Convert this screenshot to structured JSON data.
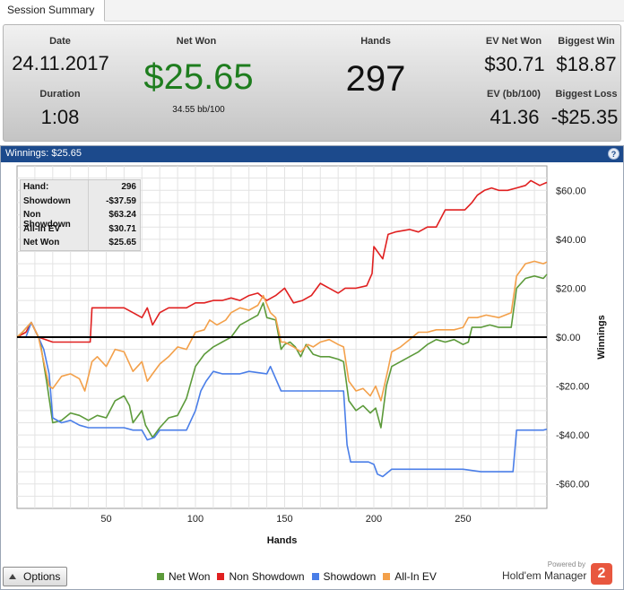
{
  "tab": {
    "label": "Session Summary"
  },
  "summary": {
    "date": {
      "label": "Date",
      "value": "24.11.2017"
    },
    "duration": {
      "label": "Duration",
      "value": "1:08"
    },
    "net_won": {
      "label": "Net Won",
      "value": "$25.65",
      "sub": "34.55 bb/100",
      "color": "#1e7d1e"
    },
    "hands": {
      "label": "Hands",
      "value": "297"
    },
    "ev_net_won": {
      "label": "EV Net Won",
      "value": "$30.71"
    },
    "biggest_win": {
      "label": "Biggest Win",
      "value": "$18.87"
    },
    "ev_bb100": {
      "label": "EV (bb/100)",
      "value": "41.36"
    },
    "biggest_loss": {
      "label": "Biggest Loss",
      "value": "-$25.35"
    }
  },
  "chart_header": {
    "title": "Winnings:  $25.65",
    "help": "?"
  },
  "info_table": [
    {
      "key": "Hand:",
      "value": "296"
    },
    {
      "key": "Showdown",
      "value": "-$37.59"
    },
    {
      "key": "Non Showdown",
      "value": "$63.24"
    },
    {
      "key": "All-In EV",
      "value": "$30.71"
    },
    {
      "key": "Net Won",
      "value": "$25.65"
    }
  ],
  "options": {
    "label": "Options"
  },
  "brand": {
    "powered": "Powered by",
    "name": "Hold'em Manager",
    "logo": "2"
  },
  "chart_data": {
    "type": "line",
    "xlabel": "Hands",
    "ylabel": "Winnings",
    "xlim": [
      0,
      297
    ],
    "ylim": [
      -70,
      70
    ],
    "xticks": [
      "50",
      "100",
      "150",
      "200",
      "250"
    ],
    "yticks": [
      "$60.00",
      "$40.00",
      "$20.00",
      "$0.00",
      "-$20.00",
      "-$40.00",
      "-$60.00"
    ],
    "grid": true,
    "legend_position": "bottom",
    "series": [
      {
        "name": "Net Won",
        "color": "#5c9a3a",
        "points": [
          [
            0,
            0
          ],
          [
            3,
            2
          ],
          [
            8,
            6
          ],
          [
            12,
            0
          ],
          [
            13,
            -2
          ],
          [
            17,
            -20
          ],
          [
            20,
            -35
          ],
          [
            25,
            -34
          ],
          [
            30,
            -31
          ],
          [
            35,
            -32
          ],
          [
            40,
            -34
          ],
          [
            45,
            -32
          ],
          [
            50,
            -33
          ],
          [
            55,
            -26
          ],
          [
            60,
            -24
          ],
          [
            63,
            -28
          ],
          [
            65,
            -35
          ],
          [
            70,
            -30
          ],
          [
            72,
            -36
          ],
          [
            76,
            -41
          ],
          [
            80,
            -37
          ],
          [
            85,
            -33
          ],
          [
            90,
            -32
          ],
          [
            95,
            -25
          ],
          [
            100,
            -12
          ],
          [
            105,
            -7
          ],
          [
            110,
            -4
          ],
          [
            115,
            -2
          ],
          [
            120,
            0
          ],
          [
            125,
            5
          ],
          [
            130,
            7
          ],
          [
            135,
            9
          ],
          [
            138,
            14
          ],
          [
            140,
            8
          ],
          [
            145,
            7
          ],
          [
            148,
            -5
          ],
          [
            150,
            -3
          ],
          [
            153,
            -2
          ],
          [
            156,
            -4
          ],
          [
            159,
            -8
          ],
          [
            162,
            -3
          ],
          [
            166,
            -7
          ],
          [
            170,
            -8
          ],
          [
            175,
            -8
          ],
          [
            180,
            -9
          ],
          [
            183,
            -10
          ],
          [
            186,
            -26
          ],
          [
            190,
            -30
          ],
          [
            194,
            -28
          ],
          [
            198,
            -31
          ],
          [
            201,
            -29
          ],
          [
            204,
            -37
          ],
          [
            207,
            -20
          ],
          [
            210,
            -12
          ],
          [
            215,
            -10
          ],
          [
            220,
            -8
          ],
          [
            225,
            -6
          ],
          [
            230,
            -3
          ],
          [
            235,
            -1
          ],
          [
            240,
            -2
          ],
          [
            245,
            -1
          ],
          [
            250,
            -3
          ],
          [
            253,
            -2
          ],
          [
            255,
            4
          ],
          [
            260,
            4
          ],
          [
            265,
            5
          ],
          [
            270,
            4
          ],
          [
            277,
            4
          ],
          [
            280,
            20
          ],
          [
            285,
            24
          ],
          [
            290,
            25
          ],
          [
            295,
            24
          ],
          [
            297,
            25.65
          ]
        ]
      },
      {
        "name": "Non Showdown",
        "color": "#e02020",
        "points": [
          [
            0,
            0
          ],
          [
            5,
            2
          ],
          [
            8,
            6
          ],
          [
            12,
            0
          ],
          [
            20,
            -2
          ],
          [
            30,
            -2
          ],
          [
            40,
            -2
          ],
          [
            41,
            -2
          ],
          [
            42,
            12
          ],
          [
            50,
            12
          ],
          [
            60,
            12
          ],
          [
            65,
            10
          ],
          [
            70,
            8
          ],
          [
            73,
            12
          ],
          [
            76,
            5
          ],
          [
            80,
            10
          ],
          [
            85,
            12
          ],
          [
            90,
            12
          ],
          [
            95,
            12
          ],
          [
            100,
            14
          ],
          [
            105,
            14
          ],
          [
            110,
            15
          ],
          [
            115,
            15
          ],
          [
            120,
            16
          ],
          [
            125,
            15
          ],
          [
            130,
            17
          ],
          [
            135,
            18
          ],
          [
            140,
            15
          ],
          [
            145,
            17
          ],
          [
            150,
            20
          ],
          [
            155,
            14
          ],
          [
            160,
            15
          ],
          [
            165,
            17
          ],
          [
            170,
            22
          ],
          [
            175,
            20
          ],
          [
            180,
            18
          ],
          [
            184,
            20
          ],
          [
            186,
            20
          ],
          [
            190,
            20
          ],
          [
            196,
            21
          ],
          [
            199,
            26
          ],
          [
            200,
            37
          ],
          [
            205,
            32
          ],
          [
            208,
            42
          ],
          [
            212,
            43
          ],
          [
            220,
            44
          ],
          [
            225,
            43
          ],
          [
            230,
            45
          ],
          [
            235,
            45
          ],
          [
            240,
            52
          ],
          [
            248,
            52
          ],
          [
            251,
            52
          ],
          [
            255,
            55
          ],
          [
            258,
            58
          ],
          [
            262,
            60
          ],
          [
            266,
            61
          ],
          [
            270,
            60
          ],
          [
            275,
            60
          ],
          [
            280,
            61
          ],
          [
            285,
            62
          ],
          [
            288,
            64
          ],
          [
            293,
            62
          ],
          [
            297,
            63.24
          ]
        ]
      },
      {
        "name": "Showdown",
        "color": "#4a7ee8",
        "points": [
          [
            0,
            0
          ],
          [
            5,
            0
          ],
          [
            8,
            6
          ],
          [
            12,
            0
          ],
          [
            15,
            -5
          ],
          [
            18,
            -15
          ],
          [
            20,
            -33
          ],
          [
            25,
            -35
          ],
          [
            30,
            -34
          ],
          [
            35,
            -36
          ],
          [
            40,
            -37
          ],
          [
            45,
            -37
          ],
          [
            50,
            -37
          ],
          [
            60,
            -37
          ],
          [
            65,
            -38
          ],
          [
            70,
            -38
          ],
          [
            73,
            -42
          ],
          [
            77,
            -41
          ],
          [
            80,
            -38
          ],
          [
            90,
            -38
          ],
          [
            95,
            -38
          ],
          [
            100,
            -30
          ],
          [
            103,
            -22
          ],
          [
            106,
            -18
          ],
          [
            110,
            -14
          ],
          [
            115,
            -15
          ],
          [
            120,
            -15
          ],
          [
            125,
            -15
          ],
          [
            130,
            -14
          ],
          [
            140,
            -15
          ],
          [
            142,
            -12
          ],
          [
            148,
            -22
          ],
          [
            150,
            -22
          ],
          [
            155,
            -22
          ],
          [
            160,
            -22
          ],
          [
            168,
            -22
          ],
          [
            175,
            -22
          ],
          [
            180,
            -22
          ],
          [
            183,
            -22
          ],
          [
            185,
            -44
          ],
          [
            187,
            -51
          ],
          [
            192,
            -51
          ],
          [
            197,
            -51
          ],
          [
            200,
            -52
          ],
          [
            202,
            -56
          ],
          [
            205,
            -57
          ],
          [
            210,
            -54
          ],
          [
            220,
            -54
          ],
          [
            230,
            -54
          ],
          [
            240,
            -54
          ],
          [
            250,
            -54
          ],
          [
            260,
            -55
          ],
          [
            270,
            -55
          ],
          [
            278,
            -55
          ],
          [
            280,
            -38
          ],
          [
            285,
            -38
          ],
          [
            290,
            -38
          ],
          [
            295,
            -38
          ],
          [
            297,
            -37.59
          ]
        ]
      },
      {
        "name": "All-In EV",
        "color": "#f3a04a",
        "points": [
          [
            0,
            0
          ],
          [
            3,
            2
          ],
          [
            8,
            6
          ],
          [
            12,
            0
          ],
          [
            15,
            -10
          ],
          [
            18,
            -20
          ],
          [
            20,
            -21
          ],
          [
            25,
            -16
          ],
          [
            30,
            -15
          ],
          [
            35,
            -17
          ],
          [
            38,
            -22
          ],
          [
            42,
            -10
          ],
          [
            45,
            -8
          ],
          [
            50,
            -12
          ],
          [
            55,
            -5
          ],
          [
            60,
            -6
          ],
          [
            65,
            -14
          ],
          [
            70,
            -10
          ],
          [
            73,
            -18
          ],
          [
            76,
            -15
          ],
          [
            80,
            -11
          ],
          [
            85,
            -8
          ],
          [
            90,
            -4
          ],
          [
            95,
            -5
          ],
          [
            100,
            2
          ],
          [
            105,
            3
          ],
          [
            108,
            7
          ],
          [
            112,
            5
          ],
          [
            117,
            7
          ],
          [
            120,
            10
          ],
          [
            125,
            12
          ],
          [
            130,
            11
          ],
          [
            135,
            13
          ],
          [
            138,
            17
          ],
          [
            142,
            10
          ],
          [
            145,
            8
          ],
          [
            148,
            -2
          ],
          [
            150,
            -2
          ],
          [
            155,
            -4
          ],
          [
            159,
            -6
          ],
          [
            163,
            -3
          ],
          [
            166,
            -4
          ],
          [
            170,
            -2
          ],
          [
            175,
            -1
          ],
          [
            180,
            -3
          ],
          [
            183,
            -4
          ],
          [
            186,
            -18
          ],
          [
            190,
            -22
          ],
          [
            194,
            -21
          ],
          [
            198,
            -24
          ],
          [
            201,
            -20
          ],
          [
            204,
            -26
          ],
          [
            208,
            -13
          ],
          [
            210,
            -6
          ],
          [
            215,
            -4
          ],
          [
            220,
            -1
          ],
          [
            225,
            2
          ],
          [
            230,
            2
          ],
          [
            235,
            3
          ],
          [
            240,
            3
          ],
          [
            245,
            3
          ],
          [
            250,
            4
          ],
          [
            253,
            8
          ],
          [
            258,
            8
          ],
          [
            263,
            9
          ],
          [
            270,
            8
          ],
          [
            277,
            10
          ],
          [
            280,
            25
          ],
          [
            285,
            30
          ],
          [
            290,
            31
          ],
          [
            295,
            30
          ],
          [
            297,
            30.71
          ]
        ]
      }
    ]
  }
}
